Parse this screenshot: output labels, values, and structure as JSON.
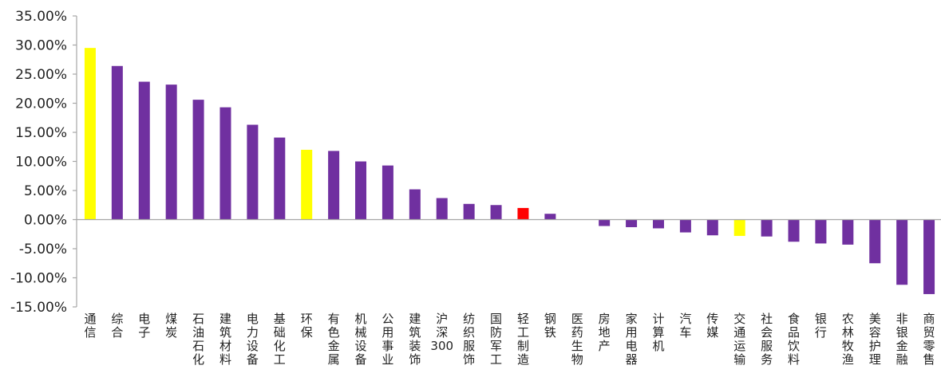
{
  "chart_data": {
    "type": "bar",
    "title": "",
    "xlabel": "",
    "ylabel": "",
    "ylim": [
      -15,
      35
    ],
    "y_ticks": [
      35,
      30,
      25,
      20,
      15,
      10,
      5,
      0,
      -5,
      -10,
      -15
    ],
    "y_tick_labels": [
      "35.00%",
      "30.00%",
      "25.00%",
      "20.00%",
      "15.00%",
      "10.00%",
      "5.00%",
      "0.00%",
      "-5.00%",
      "-10.00%",
      "-15.00%"
    ],
    "grid": false,
    "legend": "none",
    "categories": [
      "通信",
      "综合",
      "电子",
      "煤炭",
      "石油石化",
      "建筑材料",
      "电力设备",
      "基础化工",
      "环保",
      "有色金属",
      "机械设备",
      "公用事业",
      "建筑装饰",
      "沪深300",
      "纺织服饰",
      "国防军工",
      "轻工制造",
      "钢铁",
      "医药生物",
      "房地产",
      "家用电器",
      "计算机",
      "汽车",
      "传媒",
      "交通运输",
      "社会服务",
      "食品饮料",
      "银行",
      "农林牧渔",
      "美容护理",
      "非银金融",
      "商贸零售"
    ],
    "values": [
      29.5,
      26.4,
      23.7,
      23.2,
      20.6,
      19.3,
      16.3,
      14.1,
      12.0,
      11.8,
      10.0,
      9.3,
      5.2,
      3.7,
      2.7,
      2.5,
      2.0,
      1.0,
      0.0,
      -1.1,
      -1.3,
      -1.5,
      -2.2,
      -2.7,
      -2.8,
      -2.9,
      -3.8,
      -4.1,
      -4.3,
      -7.5,
      -11.2,
      -12.8
    ],
    "colors": [
      "#ffff00",
      "#7030a0",
      "#7030a0",
      "#7030a0",
      "#7030a0",
      "#7030a0",
      "#7030a0",
      "#7030a0",
      "#ffff00",
      "#7030a0",
      "#7030a0",
      "#7030a0",
      "#7030a0",
      "#7030a0",
      "#7030a0",
      "#7030a0",
      "#ff0000",
      "#7030a0",
      "#7030a0",
      "#7030a0",
      "#7030a0",
      "#7030a0",
      "#7030a0",
      "#7030a0",
      "#ffff00",
      "#7030a0",
      "#7030a0",
      "#7030a0",
      "#7030a0",
      "#7030a0",
      "#7030a0",
      "#7030a0"
    ]
  }
}
